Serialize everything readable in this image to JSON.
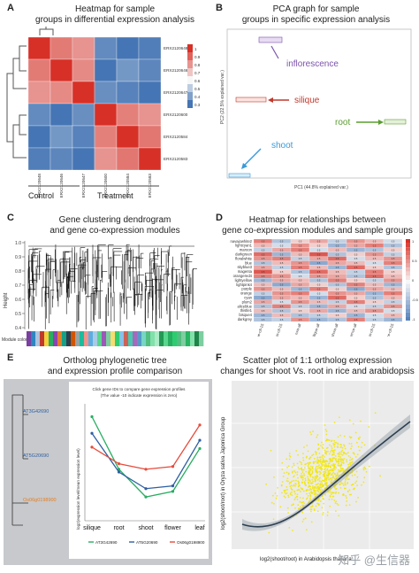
{
  "panels": {
    "A": {
      "label": "A",
      "title_line1": "Heatmap for sample",
      "title_line2": "groups in differential expression analysis",
      "row_labels": [
        "ERX2120648",
        "ERX2120646",
        "ERX2120647",
        "ERX2120600",
        "ERX2120584",
        "ERX2120583"
      ],
      "col_labels": [
        "ERX2120648",
        "ERX2120646",
        "ERX2120647",
        "ERX2120600",
        "ERX2120584",
        "ERX2120583"
      ],
      "group_left": "Control",
      "group_right": "Treatment",
      "scale_ticks": [
        "1",
        "0.9",
        "0.8",
        "0.7",
        "0.6",
        "0.5",
        "0.4",
        "0.3"
      ],
      "colors": {
        "high": "#d73027",
        "mid": "#f7f7f7",
        "low": "#4575b4"
      }
    },
    "B": {
      "label": "B",
      "title_line1": "PCA graph for sample",
      "title_line2": "groups in specific expression analysis",
      "groups": [
        {
          "name": "inflorescence",
          "color": "#7b52ab"
        },
        {
          "name": "silique",
          "color": "#c0392b"
        },
        {
          "name": "root",
          "color": "#5a9e2f"
        },
        {
          "name": "shoot",
          "color": "#3a9ad9"
        }
      ],
      "xlabel": "PC1 (44.8% explained var.)",
      "ylabel": "PC2 (22.5% explained var.)"
    },
    "C": {
      "label": "C",
      "title_line1": "Gene clustering dendrogram",
      "title_line2": "and gene co-expression modules",
      "ylabel": "Height",
      "yticks": [
        "1.0",
        "0.9",
        "0.8",
        "0.7",
        "0.6",
        "0.5",
        "0.4"
      ],
      "module_label": "Module colors",
      "module_colors": [
        "#7b3fa0",
        "#2e86c1",
        "#b0c4de",
        "#c0392b",
        "#f4d03f",
        "#27ae60",
        "#8e44ad",
        "#e67e22",
        "#16a085",
        "#2c3e50",
        "#d35400",
        "#95a5a6",
        "#1abc9c",
        "#f1948a",
        "#5dade2",
        "#a9cce3",
        "#58d68d",
        "#9b59b6",
        "#7dcea0",
        "#f7dc6f",
        "#2ecc71",
        "#85c1e9",
        "#cd6155",
        "#48c9b0",
        "#a569bd",
        "#5499c7",
        "#76d7c4",
        "#52be80",
        "#82e0aa",
        "#abebc6",
        "#229954",
        "#58d68d",
        "#27ae60",
        "#2ecc71",
        "#52be80",
        "#7dcea0",
        "#28b463",
        "#82e0aa",
        "#1e8449",
        "#7dcea0"
      ]
    },
    "D": {
      "label": "D",
      "title_line1": "Heatmap for relationships between",
      "title_line2": "gene co-expression modules and sample groups",
      "rows": [
        "navajowhite2",
        "lightcyan1",
        "maroon",
        "darkgreen",
        "floralwhite",
        "blue",
        "skyblue3",
        "magenta",
        "orangered4",
        "lightyellow",
        "lightpink4",
        "purple",
        "orange",
        "cyan",
        "plum2",
        "aliceblue",
        "thistle1",
        "bisque4",
        "darkgrey"
      ],
      "cols": [
        "silique-c8-25",
        "root-c8-25",
        "root-all",
        "silique-all",
        "shoot-all",
        "inflorescence-all",
        "shoot-c8-25",
        "inflorescence-c8-25"
      ],
      "cell_label": "0.5",
      "values": [
        [
          0.6,
          -0.4,
          0.2,
          0.4,
          -0.3,
          0.5,
          0.3,
          -0.2
        ],
        [
          0.3,
          -0.2,
          0.5,
          0.2,
          -0.5,
          0.4,
          0.6,
          -0.4
        ],
        [
          -0.3,
          0.4,
          0.6,
          -0.2,
          0.3,
          -0.5,
          -0.4,
          0.2
        ],
        [
          0.7,
          -0.5,
          0.3,
          0.8,
          -0.4,
          0.2,
          0.5,
          -0.3
        ],
        [
          0.5,
          0.6,
          -0.3,
          0.4,
          0.7,
          -0.2,
          0.3,
          0.5
        ],
        [
          -0.4,
          0.3,
          0.5,
          -0.6,
          0.4,
          0.3,
          -0.2,
          0.6
        ],
        [
          0.4,
          -0.3,
          0.6,
          0.3,
          -0.5,
          0.7,
          0.2,
          -0.4
        ],
        [
          0.8,
          0.2,
          -0.4,
          0.7,
          0.3,
          -0.3,
          0.6,
          0.2
        ],
        [
          0.6,
          0.5,
          -0.2,
          0.5,
          0.4,
          -0.4,
          0.7,
          0.3
        ],
        [
          -0.5,
          0.4,
          0.3,
          -0.4,
          0.6,
          0.2,
          -0.3,
          0.5
        ],
        [
          0.3,
          -0.6,
          0.4,
          0.2,
          -0.4,
          0.6,
          0.3,
          -0.5
        ],
        [
          0.5,
          0.3,
          -0.5,
          0.6,
          0.2,
          -0.6,
          0.4,
          0.3
        ],
        [
          -0.3,
          0.5,
          0.6,
          -0.2,
          0.5,
          0.4,
          -0.5,
          0.6
        ],
        [
          -0.6,
          0.4,
          0.3,
          -0.5,
          0.7,
          0.2,
          -0.4,
          0.3
        ],
        [
          0.4,
          -0.2,
          0.5,
          0.3,
          -0.3,
          0.6,
          0.2,
          -0.3
        ],
        [
          -0.4,
          0.6,
          -0.3,
          -0.5,
          0.4,
          -0.2,
          -0.3,
          0.5
        ],
        [
          0.3,
          -0.4,
          0.2,
          0.4,
          -0.5,
          0.3,
          0.5,
          -0.2
        ],
        [
          -0.5,
          0.3,
          -0.4,
          -0.3,
          0.2,
          -0.5,
          -0.2,
          0.3
        ],
        [
          -0.4,
          -0.3,
          0.5,
          -0.5,
          -0.4,
          0.6,
          -0.3,
          -0.5
        ]
      ],
      "scale_ticks": [
        "1",
        "0.5",
        "0",
        "-0.5",
        "-1"
      ],
      "colors": {
        "pos": "#d73027",
        "neg": "#4575b4"
      }
    },
    "E": {
      "label": "E",
      "title_line1": "Ortholog phylogenetic tree",
      "title_line2": "and expression profile comparison",
      "tree_leaves": [
        "AT3G42690",
        "AT5G20690",
        "Os06g0198900"
      ],
      "tree_leaf_colors": [
        "#2e5fa3",
        "#2e5fa3",
        "#e67e22"
      ],
      "chart_note_line1": "Click gene IDs to compare gene expression profiles",
      "chart_note_line2": "(The value -10 indicate expression is zero)",
      "ylabel": "log2(expression level/mean expression level)",
      "categories": [
        "silique",
        "root",
        "shoot",
        "flower",
        "leaf"
      ],
      "legend": [
        {
          "name": "AT3G42690",
          "color": "#27ae60"
        },
        {
          "name": "AT5G20690",
          "color": "#2e5fa3"
        },
        {
          "name": "Os06g0198900",
          "color": "#e74c3c"
        }
      ]
    },
    "F": {
      "label": "F",
      "title_line1": "Scatter plot of 1:1 ortholog expression",
      "title_line2": "changes for shoot Vs. root in rice and arabidopsis",
      "ylabel": "log2(shoot/root) in Oryza sativa Japonica Group",
      "xlabel": "log2(shoot/root) in Arabidopsis thaliana",
      "point_color": "#f2e600",
      "line_color": "#2c3e50"
    }
  },
  "watermark": "知乎 @生信器",
  "chart_data": [
    {
      "type": "line",
      "title": "Ortholog phylogenetic tree and expression profile comparison",
      "categories": [
        "silique",
        "root",
        "shoot",
        "flower",
        "leaf"
      ],
      "series": [
        {
          "name": "AT3G42690",
          "values": [
            3.2,
            -0.6,
            -2.6,
            -2.2,
            0.9
          ]
        },
        {
          "name": "AT5G20690",
          "values": [
            2.0,
            -0.8,
            -2.0,
            -1.8,
            1.5
          ]
        },
        {
          "name": "Os06g0198900",
          "values": [
            1.0,
            -0.2,
            -0.6,
            -0.4,
            2.6
          ]
        }
      ]
    }
  ]
}
